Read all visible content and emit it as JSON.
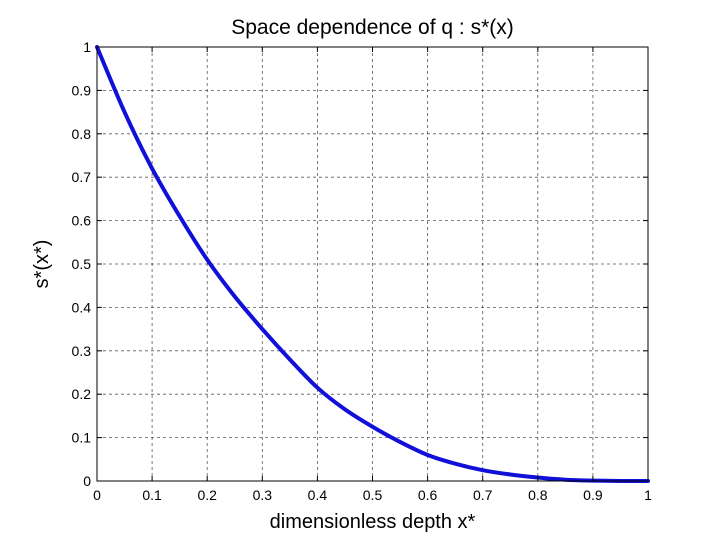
{
  "chart_data": {
    "type": "line",
    "title": "Space dependence of q : s*(x)",
    "xlabel": "dimensionless depth x*",
    "ylabel": "s*(x*)",
    "xlim": [
      0,
      1
    ],
    "ylim": [
      0,
      1
    ],
    "grid": true,
    "x_ticks": [
      "0",
      "0.1",
      "0.2",
      "0.3",
      "0.4",
      "0.5",
      "0.6",
      "0.7",
      "0.8",
      "0.9",
      "1"
    ],
    "y_ticks": [
      "0",
      "0.1",
      "0.2",
      "0.3",
      "0.4",
      "0.5",
      "0.6",
      "0.7",
      "0.8",
      "0.9",
      "1"
    ],
    "series": [
      {
        "color": "#1010d8",
        "x": [
          0,
          0.05,
          0.1,
          0.15,
          0.2,
          0.25,
          0.3,
          0.35,
          0.4,
          0.45,
          0.5,
          0.55,
          0.6,
          0.65,
          0.7,
          0.75,
          0.8,
          0.85,
          0.9,
          0.95,
          1.0
        ],
        "y": [
          1.0,
          0.85,
          0.72,
          0.61,
          0.51,
          0.425,
          0.35,
          0.28,
          0.215,
          0.165,
          0.125,
          0.09,
          0.06,
          0.04,
          0.025,
          0.015,
          0.008,
          0.003,
          0.001,
          0.0,
          0.0
        ]
      }
    ]
  }
}
